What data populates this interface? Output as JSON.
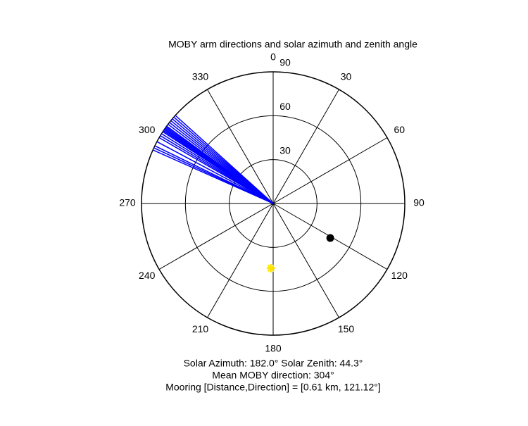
{
  "chart_data": {
    "type": "polar",
    "title": "MOBY arm directions and solar azimuth and zenith angle",
    "theta_ticks": [
      0,
      30,
      60,
      90,
      120,
      150,
      180,
      210,
      240,
      270,
      300,
      330
    ],
    "rlim": [
      0,
      90
    ],
    "rticks": [
      30,
      60,
      90
    ],
    "moby_directions": [
      294,
      295,
      296,
      298,
      300,
      301,
      302,
      303,
      303.5,
      304,
      304.5,
      305,
      305.5,
      306,
      307,
      308,
      309,
      310,
      311,
      312
    ],
    "moby_color": "#0000ff",
    "sun": {
      "azimuth": 182.0,
      "zenith": 44.3,
      "color": "#ffe600"
    },
    "mooring": {
      "direction": 121.12,
      "r": 45.6,
      "color": "#000000"
    },
    "annotations": [
      "Solar Azimuth: 182.0°   Solar Zenith: 44.3°",
      "Mean MOBY direction: 304°",
      "Mooring [Distance,Direction] = [0.61 km, 121.12°]"
    ]
  }
}
